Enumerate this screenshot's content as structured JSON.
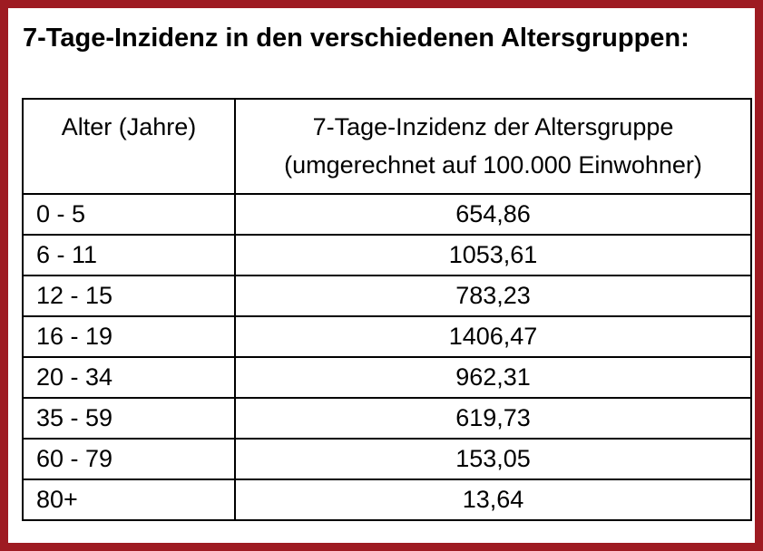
{
  "title": "7-Tage-Inzidenz in den verschiedenen Altersgruppen:",
  "table": {
    "col1_header": "Alter (Jahre)",
    "col2_header_line1": "7-Tage-Inzidenz der Altersgruppe",
    "col2_header_line2": "(umgerechnet auf 100.000 Einwohner)",
    "rows": [
      {
        "age": "0 - 5",
        "value": "654,86"
      },
      {
        "age": "6 - 11",
        "value": "1053,61"
      },
      {
        "age": "12 - 15",
        "value": "783,23"
      },
      {
        "age": "16 - 19",
        "value": "1406,47"
      },
      {
        "age": "20 - 34",
        "value": "962,31"
      },
      {
        "age": "35 - 59",
        "value": "619,73"
      },
      {
        "age": "60 - 79",
        "value": "153,05"
      },
      {
        "age": "80+",
        "value": "13,64"
      }
    ]
  },
  "colors": {
    "frame_border": "#9e1b22",
    "table_border": "#000000",
    "text": "#000000",
    "background": "#ffffff"
  },
  "chart_data": {
    "type": "table",
    "title": "7-Tage-Inzidenz in den verschiedenen Altersgruppen:",
    "columns": [
      "Alter (Jahre)",
      "7-Tage-Inzidenz der Altersgruppe (umgerechnet auf 100.000 Einwohner)"
    ],
    "categories": [
      "0 - 5",
      "6 - 11",
      "12 - 15",
      "16 - 19",
      "20 - 34",
      "35 - 59",
      "60 - 79",
      "80+"
    ],
    "values": [
      654.86,
      1053.61,
      783.23,
      1406.47,
      962.31,
      619.73,
      153.05,
      13.64
    ],
    "value_format": "german-decimal-comma"
  }
}
